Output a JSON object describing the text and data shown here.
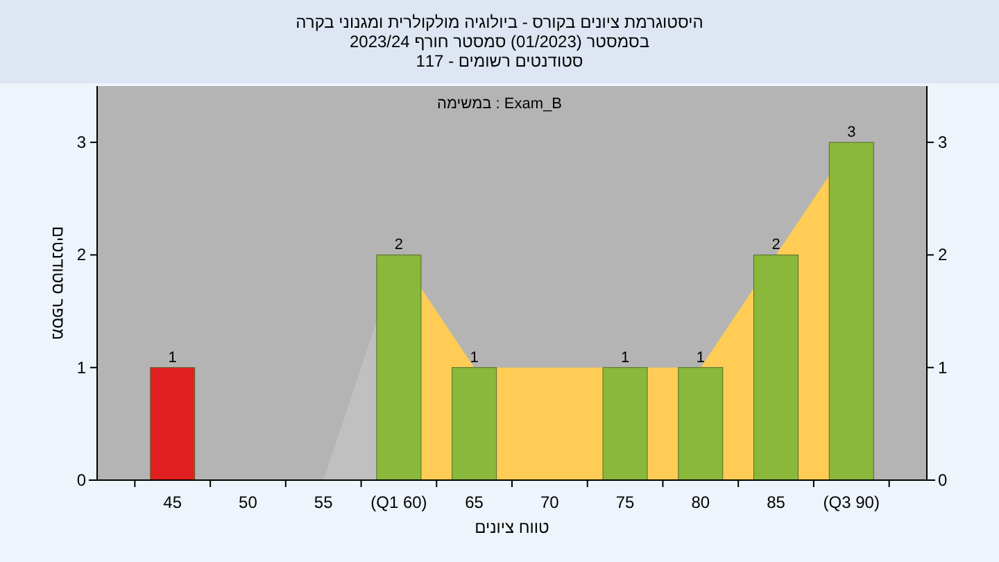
{
  "chart_data": {
    "type": "bar",
    "title": "היסטוגרמת ציונים בקורס - ביולוגיה מולקולרית ומגנוני בקרה",
    "subtitle": "בסמסטר  (01/2023)  סמסטר חורף 2023/24",
    "annotations": [
      "סטודנטים רשומים - 117",
      "במשימה : Exam_B"
    ],
    "xlabel": "טווח ציונים",
    "ylabel": "מספר סטודנטים",
    "categories": [
      "45",
      "50",
      "55",
      "(Q1 60)",
      "65",
      "70",
      "75",
      "80",
      "85",
      "(Q3 90)"
    ],
    "series": [
      {
        "type": "area",
        "color": "#c0c0c0",
        "values": [
          null,
          null,
          0,
          2,
          null,
          null,
          null,
          null,
          null,
          null
        ]
      },
      {
        "type": "area",
        "color": "#ffcc55",
        "values": [
          null,
          null,
          null,
          2,
          1,
          1,
          1,
          1,
          2,
          3
        ]
      },
      {
        "colors": [
          "#e02020",
          "#8ab83a",
          "#8ab83a",
          "#8ab83a",
          "#8ab83a",
          "#8ab83a",
          "#8ab83a",
          "#8ab83a",
          "#8ab83a",
          "#8ab83a"
        ],
        "values": [
          1,
          0,
          0,
          2,
          1,
          0,
          1,
          1,
          2,
          3
        ],
        "value_labels": [
          "1",
          null,
          null,
          "2",
          "1",
          null,
          "1",
          "1",
          "2",
          "3"
        ]
      }
    ],
    "ylim": [
      0,
      3.5
    ],
    "yticks": [
      0,
      1,
      2,
      3
    ],
    "y2lim": [
      0,
      3.5
    ],
    "y2ticks": [
      0,
      1,
      2,
      3
    ]
  }
}
